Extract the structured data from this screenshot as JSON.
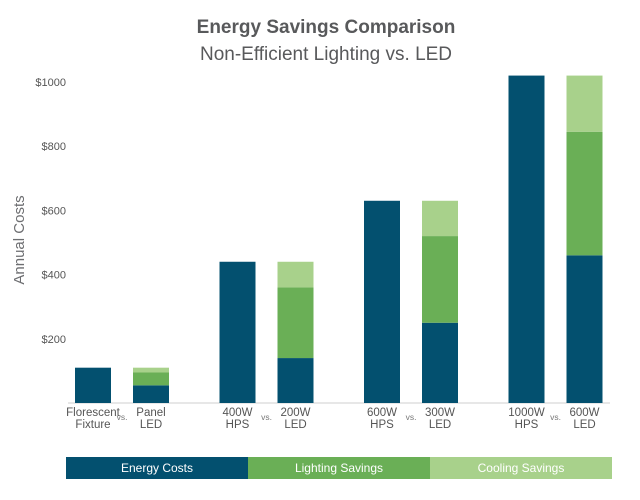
{
  "chart_data": {
    "type": "bar",
    "stacked": true,
    "title": "Energy Savings Comparison",
    "subtitle": "Non-Efficient Lighting vs. LED",
    "ylabel": "Annual Costs",
    "xlabel": "",
    "ylim": [
      0,
      1000
    ],
    "yticks": [
      200,
      400,
      600,
      800,
      1000
    ],
    "ytick_labels": [
      "$200",
      "$400",
      "$600",
      "$800",
      "$1000"
    ],
    "grid": false,
    "legend_position": "bottom",
    "separator": "vs.",
    "groups": [
      {
        "pair": [
          {
            "label": [
              "Florescent",
              "Fixture"
            ],
            "values": [
              110,
              0,
              0
            ]
          },
          {
            "label": [
              "Panel",
              "LED"
            ],
            "values": [
              55,
              40,
              15
            ]
          }
        ]
      },
      {
        "pair": [
          {
            "label": [
              "400W",
              "HPS"
            ],
            "values": [
              440,
              0,
              0
            ]
          },
          {
            "label": [
              "200W",
              "LED"
            ],
            "values": [
              140,
              220,
              80
            ]
          }
        ]
      },
      {
        "pair": [
          {
            "label": [
              "600W",
              "HPS"
            ],
            "values": [
              630,
              0,
              0
            ]
          },
          {
            "label": [
              "300W",
              "LED"
            ],
            "values": [
              250,
              270,
              110
            ]
          }
        ]
      },
      {
        "pair": [
          {
            "label": [
              "1000W",
              "HPS"
            ],
            "values": [
              1020,
              0,
              0
            ]
          },
          {
            "label": [
              "600W",
              "LED"
            ],
            "values": [
              460,
              385,
              175
            ]
          }
        ]
      }
    ],
    "series": [
      {
        "name": "Energy Costs",
        "color": "#03506f"
      },
      {
        "name": "Lighting Savings",
        "color": "#6aaf56"
      },
      {
        "name": "Cooling Savings",
        "color": "#a8d18b"
      }
    ]
  }
}
